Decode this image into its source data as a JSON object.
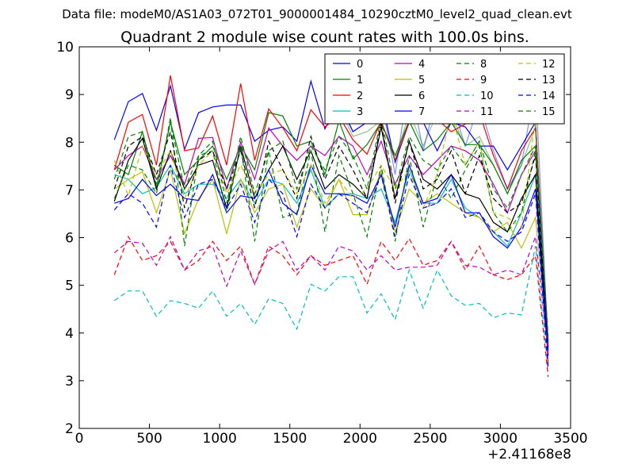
{
  "chart_data": {
    "type": "line",
    "suptitle": "Data file: modeM0/AS1A03_072T01_9000001484_10290cztM0_level2_quad_clean.evt",
    "title": "Quadrant 2 module wise count rates with 100.0s bins.",
    "xlabel": "",
    "ylabel": "",
    "x_offset_label": "+2.41168e8",
    "xlim": [
      0,
      3500
    ],
    "ylim": [
      2,
      10
    ],
    "xticks": [
      0,
      500,
      1000,
      1500,
      2000,
      2500,
      3000,
      3500
    ],
    "yticks": [
      2,
      3,
      4,
      5,
      6,
      7,
      8,
      9,
      10
    ],
    "grid": false,
    "legend_position": "top-right",
    "legend_columns": 4,
    "x": [
      250,
      350,
      450,
      550,
      650,
      750,
      850,
      950,
      1050,
      1150,
      1250,
      1350,
      1450,
      1550,
      1650,
      1750,
      1850,
      1950,
      2050,
      2150,
      2250,
      2350,
      2450,
      2550,
      2650,
      2750,
      2850,
      2950,
      3050,
      3150,
      3250,
      3340
    ],
    "series": [
      {
        "name": "0",
        "color": "#0000ff",
        "dash": "solid",
        "opacity": 1,
        "values": [
          8.05,
          8.85,
          9.02,
          8.25,
          9.18,
          7.85,
          8.62,
          8.74,
          8.78,
          8.78,
          8.02,
          8.25,
          8.32,
          8.02,
          9.28,
          8.28,
          8.82,
          8.22,
          8.42,
          8.92,
          7.58,
          8.42,
          8.42,
          7.82,
          8.42,
          8.32,
          7.92,
          7.92,
          7.42,
          7.92,
          8.42,
          3.65
        ]
      },
      {
        "name": "1",
        "color": "#008000",
        "dash": "solid",
        "opacity": 1,
        "values": [
          7.52,
          7.32,
          8.22,
          7.05,
          8.42,
          7.32,
          7.62,
          7.92,
          7.22,
          7.92,
          7.42,
          8.62,
          8.55,
          7.92,
          8.02,
          7.32,
          8.45,
          7.65,
          7.95,
          8.42,
          7.72,
          8.45,
          7.82,
          8.05,
          8.42,
          7.95,
          7.95,
          7.52,
          6.92,
          7.62,
          7.92,
          3.85
        ]
      },
      {
        "name": "2",
        "color": "#ff0000",
        "dash": "solid",
        "opacity": 1,
        "values": [
          7.42,
          8.42,
          8.58,
          7.52,
          9.4,
          7.82,
          7.88,
          8.55,
          7.52,
          9.23,
          7.62,
          8.7,
          8.3,
          7.82,
          8.68,
          8.32,
          8.55,
          8.05,
          7.75,
          8.45,
          7.62,
          8.42,
          8.42,
          8.48,
          8.22,
          8.38,
          8.62,
          7.72,
          7.02,
          7.82,
          8.3,
          3.32
        ]
      },
      {
        "name": "3",
        "color": "#00bfbf",
        "dash": "solid",
        "opacity": 1,
        "values": [
          7.32,
          7.22,
          6.92,
          7.05,
          7.52,
          6.92,
          7.12,
          7.12,
          6.82,
          7.22,
          6.72,
          7.22,
          7.12,
          6.72,
          7.42,
          6.62,
          6.92,
          6.92,
          6.82,
          7.02,
          6.32,
          7.42,
          6.72,
          6.72,
          7.22,
          6.62,
          6.42,
          6.12,
          5.82,
          6.52,
          7.32,
          3.55
        ]
      },
      {
        "name": "4",
        "color": "#bf00bf",
        "dash": "solid",
        "opacity": 1,
        "values": [
          7.42,
          7.72,
          7.92,
          7.22,
          7.72,
          7.12,
          8.08,
          8.1,
          7.02,
          8.0,
          7.22,
          8.3,
          7.92,
          7.62,
          7.92,
          7.72,
          8.12,
          7.92,
          7.32,
          8.02,
          7.12,
          7.72,
          7.32,
          7.62,
          7.92,
          7.82,
          7.62,
          7.12,
          6.52,
          7.32,
          7.82,
          3.72
        ]
      },
      {
        "name": "5",
        "color": "#bfbf00",
        "dash": "solid",
        "opacity": 1,
        "values": [
          7.02,
          7.22,
          7.38,
          6.52,
          7.42,
          6.08,
          6.82,
          7.22,
          6.08,
          7.22,
          6.52,
          7.02,
          7.12,
          6.22,
          7.02,
          6.62,
          7.22,
          6.48,
          6.48,
          7.42,
          6.12,
          7.02,
          6.72,
          6.92,
          6.72,
          6.52,
          6.42,
          6.12,
          6.32,
          5.78,
          6.42,
          3.72
        ]
      },
      {
        "name": "6",
        "color": "#000000",
        "dash": "solid",
        "opacity": 1,
        "values": [
          6.76,
          7.62,
          8.08,
          7.02,
          7.82,
          7.02,
          7.52,
          7.62,
          6.62,
          7.92,
          6.82,
          7.42,
          7.92,
          7.22,
          7.82,
          7.02,
          7.32,
          7.12,
          6.82,
          8.32,
          6.82,
          8.02,
          7.22,
          7.02,
          7.32,
          6.92,
          6.82,
          6.32,
          6.12,
          6.82,
          7.32,
          3.62
        ]
      },
      {
        "name": "7",
        "color": "#0000ff",
        "dash": "solid",
        "opacity": 1,
        "values": [
          6.72,
          6.82,
          7.22,
          6.88,
          7.12,
          6.82,
          6.78,
          7.32,
          6.52,
          6.88,
          6.82,
          7.42,
          6.72,
          6.48,
          7.52,
          6.92,
          6.92,
          6.88,
          6.72,
          7.32,
          6.22,
          7.52,
          6.72,
          6.82,
          7.32,
          6.52,
          6.52,
          6.02,
          5.78,
          6.22,
          7.02,
          3.52
        ]
      },
      {
        "name": "8",
        "color": "#008000",
        "dash": "dashed",
        "opacity": 1,
        "values": [
          6.82,
          7.52,
          7.42,
          6.92,
          8.52,
          5.82,
          7.72,
          7.82,
          6.52,
          7.92,
          5.92,
          7.82,
          6.42,
          6.52,
          7.82,
          6.12,
          7.72,
          6.92,
          6.02,
          7.52,
          5.92,
          7.72,
          6.22,
          7.32,
          6.82,
          7.42,
          7.92,
          6.52,
          6.12,
          6.52,
          7.82,
          3.82
        ]
      },
      {
        "name": "9",
        "color": "#ff0000",
        "dash": "dashed",
        "opacity": 1,
        "values": [
          5.22,
          6.02,
          5.52,
          5.62,
          5.92,
          5.32,
          5.52,
          5.92,
          5.52,
          5.82,
          5.02,
          5.82,
          5.62,
          5.22,
          5.62,
          5.42,
          5.52,
          5.62,
          5.02,
          5.92,
          5.52,
          5.98,
          5.42,
          5.52,
          5.92,
          5.32,
          5.82,
          5.22,
          5.12,
          5.22,
          5.62,
          3.08
        ]
      },
      {
        "name": "10",
        "color": "#00bfbf",
        "dash": "dashed",
        "opacity": 1,
        "values": [
          4.68,
          4.88,
          4.88,
          4.35,
          4.68,
          4.62,
          4.52,
          4.88,
          4.35,
          4.62,
          4.18,
          4.72,
          4.62,
          4.08,
          5.02,
          4.88,
          5.18,
          5.18,
          4.42,
          4.82,
          4.28,
          5.32,
          4.52,
          5.32,
          4.78,
          4.58,
          4.62,
          4.32,
          4.42,
          4.38,
          5.82,
          3.22
        ]
      },
      {
        "name": "11",
        "color": "#bf00bf",
        "dash": "dashed",
        "opacity": 1,
        "values": [
          5.68,
          5.92,
          5.88,
          5.42,
          6.02,
          5.32,
          5.72,
          5.82,
          4.98,
          5.72,
          5.02,
          5.72,
          5.92,
          5.32,
          5.62,
          5.32,
          5.82,
          5.72,
          5.32,
          5.62,
          5.32,
          5.38,
          5.38,
          5.42,
          5.92,
          5.42,
          5.38,
          5.22,
          5.32,
          5.22,
          6.02,
          3.58
        ]
      },
      {
        "name": "12",
        "color": "#bfbf00",
        "dash": "dashed",
        "opacity": 1,
        "values": [
          7.62,
          6.88,
          7.92,
          7.32,
          7.82,
          6.82,
          7.52,
          7.82,
          6.92,
          7.52,
          6.92,
          7.32,
          7.42,
          6.92,
          7.52,
          6.72,
          7.22,
          6.82,
          7.02,
          7.52,
          7.02,
          7.42,
          6.62,
          7.32,
          8.62,
          7.52,
          8.02,
          6.52,
          6.42,
          6.22,
          8.52,
          3.82
        ]
      },
      {
        "name": "13",
        "color": "#000000",
        "dash": "dashed",
        "opacity": 1,
        "values": [
          7.02,
          7.92,
          8.12,
          7.32,
          8.22,
          6.62,
          7.62,
          7.82,
          7.02,
          7.82,
          6.62,
          8.02,
          7.42,
          6.82,
          8.12,
          7.22,
          7.92,
          7.42,
          6.82,
          8.42,
          6.72,
          8.02,
          7.02,
          7.22,
          7.82,
          6.92,
          7.72,
          6.82,
          6.52,
          6.72,
          7.72,
          3.72
        ]
      },
      {
        "name": "14",
        "color": "#0000ff",
        "dash": "dashed",
        "opacity": 1,
        "values": [
          6.58,
          6.92,
          6.72,
          6.22,
          7.52,
          6.42,
          7.12,
          7.22,
          6.62,
          7.12,
          6.32,
          7.22,
          6.92,
          6.02,
          7.12,
          6.62,
          6.92,
          6.72,
          6.52,
          7.32,
          6.02,
          7.32,
          6.62,
          6.72,
          7.02,
          6.42,
          6.52,
          6.12,
          5.92,
          6.12,
          6.92,
          3.22
        ]
      },
      {
        "name": "15",
        "color": "#008000",
        "dash": "dashed",
        "opacity": 1,
        "values": [
          7.22,
          8.12,
          8.22,
          7.12,
          8.42,
          7.02,
          7.72,
          8.02,
          6.72,
          8.12,
          6.92,
          7.82,
          8.02,
          7.02,
          7.92,
          7.42,
          8.12,
          7.72,
          7.02,
          8.52,
          7.02,
          8.12,
          7.62,
          7.42,
          7.92,
          7.52,
          8.02,
          7.02,
          6.62,
          7.32,
          7.92,
          3.92
        ]
      },
      {
        "name": "",
        "color": "#0000ff",
        "dash": "solid",
        "opacity": 0.45,
        "values": [
          null,
          null,
          null,
          null,
          null,
          null,
          null,
          null,
          null,
          null,
          null,
          null,
          null,
          null,
          null,
          null,
          8.9,
          8.22,
          8.42,
          8.92,
          7.32,
          9.35,
          7.82,
          9.02,
          8.85,
          7.92,
          8.82,
          7.82,
          7.02,
          7.52,
          9.22,
          3.72
        ]
      },
      {
        "name": "",
        "color": "#008000",
        "dash": "solid",
        "opacity": 0.45,
        "values": [
          null,
          null,
          null,
          null,
          null,
          null,
          null,
          null,
          null,
          null,
          null,
          null,
          null,
          null,
          null,
          null,
          8.75,
          8.12,
          8.22,
          8.45,
          7.62,
          8.62,
          7.92,
          8.62,
          8.58,
          7.92,
          8.12,
          7.52,
          6.92,
          7.52,
          8.32,
          3.82
        ]
      }
    ]
  }
}
